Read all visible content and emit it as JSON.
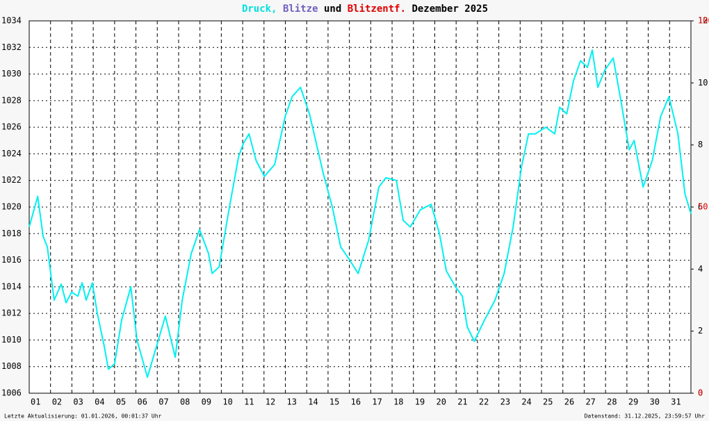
{
  "chart_data": {
    "type": "line",
    "title": [
      {
        "text": "Druck,",
        "color": "#00e0e0"
      },
      {
        "text": "Blitze",
        "color": "#7060c0"
      },
      {
        "text": "und",
        "color": "#000000"
      },
      {
        "text": "Blitzentf.",
        "color": "#e00000"
      },
      {
        "text": "Dezember 2025",
        "color": "#000000"
      }
    ],
    "footer_left": "Letzte Aktualisierung: 01.01.2026, 00:01:37 Uhr",
    "footer_right": "Datenstand: 31.12.2025, 23:59:57 Uhr",
    "x": [
      1.0,
      1.4,
      1.65,
      1.85,
      2.17,
      2.5,
      2.73,
      2.99,
      3.28,
      3.48,
      3.67,
      3.96,
      4.19,
      4.52,
      4.71,
      5.0,
      5.33,
      5.76,
      6.05,
      6.54,
      6.96,
      7.38,
      7.84,
      8.17,
      8.59,
      8.98,
      9.4,
      9.57,
      9.9,
      10.38,
      10.81,
      11.04,
      11.3,
      11.63,
      12.02,
      12.5,
      12.99,
      13.32,
      13.71,
      14.13,
      14.45,
      14.78,
      15.2,
      15.59,
      16.02,
      16.41,
      16.9,
      17.38,
      17.71,
      18.2,
      18.52,
      18.85,
      19.33,
      19.83,
      20.22,
      20.54,
      20.97,
      21.29,
      21.52,
      21.85,
      22.33,
      22.82,
      23.25,
      23.67,
      24.06,
      24.39,
      24.71,
      25.2,
      25.62,
      25.85,
      26.18,
      26.5,
      26.83,
      27.15,
      27.38,
      27.64,
      27.97,
      28.36,
      28.72,
      29.11,
      29.34,
      29.76,
      30.19,
      30.58,
      30.97,
      31.39,
      31.72,
      32.0
    ],
    "series": [
      {
        "name": "Druck",
        "color": "#00f0f0",
        "values": [
          1018.5,
          1020.8,
          1017.8,
          1017,
          1013,
          1014.2,
          1012.8,
          1013.6,
          1013.3,
          1014.3,
          1013,
          1014.3,
          1012,
          1009.5,
          1007.8,
          1008.2,
          1011.5,
          1014,
          1010,
          1007.2,
          1009.5,
          1011.8,
          1008.7,
          1013,
          1016.5,
          1018.3,
          1016.5,
          1015,
          1015.5,
          1020,
          1023.8,
          1024.8,
          1025.5,
          1023.5,
          1022.3,
          1023.2,
          1026.8,
          1028.3,
          1029,
          1027,
          1024.8,
          1022.5,
          1020,
          1017,
          1016,
          1015,
          1017.5,
          1021.5,
          1022.2,
          1022,
          1019,
          1018.5,
          1019.8,
          1020.2,
          1018,
          1015.2,
          1014,
          1013.3,
          1011,
          1009.9,
          1011.5,
          1013,
          1015,
          1018.5,
          1023,
          1025.5,
          1025.5,
          1026,
          1025.5,
          1027.5,
          1027,
          1029.5,
          1031,
          1030.5,
          1031.8,
          1029,
          1030.3,
          1031.2,
          1028,
          1024.3,
          1025,
          1021.5,
          1023.5,
          1026.8,
          1028.3,
          1025.5,
          1021,
          1019.5
        ]
      }
    ],
    "xlim": [
      1,
      32
    ],
    "xticks": [
      {
        "value": 1,
        "label": "01"
      },
      {
        "value": 2,
        "label": "02"
      },
      {
        "value": 3,
        "label": "03"
      },
      {
        "value": 4,
        "label": "04"
      },
      {
        "value": 5,
        "label": "05"
      },
      {
        "value": 6,
        "label": "06"
      },
      {
        "value": 7,
        "label": "07"
      },
      {
        "value": 8,
        "label": "08"
      },
      {
        "value": 9,
        "label": "09"
      },
      10,
      11,
      12,
      13,
      14,
      15,
      16,
      17,
      18,
      19,
      20,
      21,
      22,
      23,
      24,
      25,
      26,
      27,
      28,
      29,
      30,
      31
    ],
    "ylim": [
      1006,
      1034
    ],
    "yticks": [
      1006,
      1008,
      1010,
      1012,
      1014,
      1016,
      1018,
      1020,
      1022,
      1024,
      1026,
      1028,
      1030,
      1032,
      1034
    ],
    "y2lim": [
      0,
      12
    ],
    "y2ticks": [
      0,
      2,
      4,
      6,
      8,
      10,
      12
    ],
    "y3lim": [
      0,
      100
    ],
    "y3ticks": [
      0,
      50,
      100
    ],
    "y3color": "#e00000",
    "grid": true
  }
}
